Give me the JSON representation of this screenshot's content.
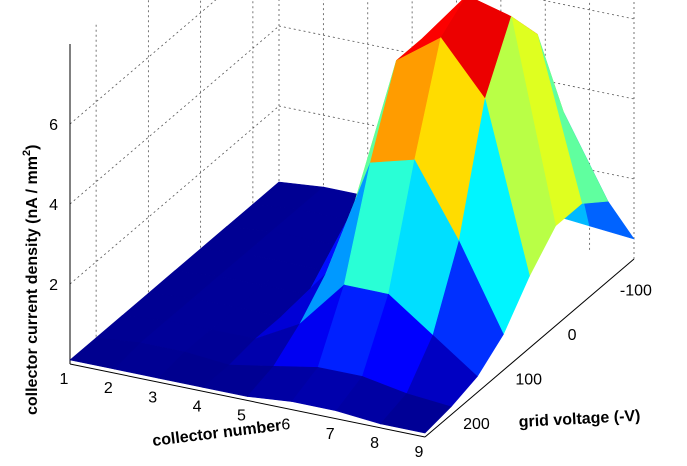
{
  "chart_data": {
    "type": "surface",
    "title": "",
    "xlabel": "collector number",
    "ylabel": "grid voltage (-V)",
    "zlabel": "collector current density (nA / mm",
    "zlabel_sup": "2",
    "zlabel_end": ")",
    "x_ticks": [
      "1",
      "2",
      "3",
      "4",
      "5",
      "6",
      "7",
      "8",
      "9"
    ],
    "y_ticks": [
      "-100",
      "0",
      "100",
      "200"
    ],
    "z_ticks": [
      "2",
      "4",
      "6"
    ],
    "xlim": [
      1,
      9
    ],
    "ylim": [
      -150,
      250
    ],
    "zlim": [
      0,
      8
    ],
    "grid": true,
    "colormap": "jet",
    "x": [
      1,
      2,
      3,
      4,
      5,
      6,
      7,
      8,
      9
    ],
    "y": [
      -150,
      -100,
      -50,
      0,
      50,
      100,
      150,
      200,
      250
    ],
    "z": [
      [
        0.1,
        0.2,
        0.2,
        0.2,
        0.6,
        0.7,
        0.7,
        0.6,
        0.5
      ],
      [
        0.1,
        0.2,
        0.2,
        0.2,
        2.5,
        3.0,
        4.5,
        4.0,
        2.0
      ],
      [
        0.1,
        0.2,
        0.2,
        0.2,
        3.5,
        5.0,
        6.5,
        6.5,
        2.5
      ],
      [
        0.1,
        0.2,
        0.2,
        0.2,
        3.0,
        6.5,
        7.8,
        7.5,
        2.5
      ],
      [
        0.1,
        0.2,
        0.2,
        0.2,
        2.5,
        6.5,
        7.3,
        6.0,
        1.8
      ],
      [
        0.1,
        0.2,
        0.2,
        0.2,
        1.5,
        4.5,
        4.8,
        3.0,
        0.9
      ],
      [
        0.1,
        0.2,
        0.2,
        0.2,
        0.8,
        2.0,
        2.0,
        1.2,
        0.4
      ],
      [
        0.1,
        0.2,
        0.2,
        0.1,
        0.3,
        0.5,
        0.5,
        0.3,
        0.2
      ],
      [
        0.1,
        0.1,
        0.1,
        0.1,
        0.1,
        0.2,
        0.2,
        0.1,
        0.1
      ]
    ]
  }
}
